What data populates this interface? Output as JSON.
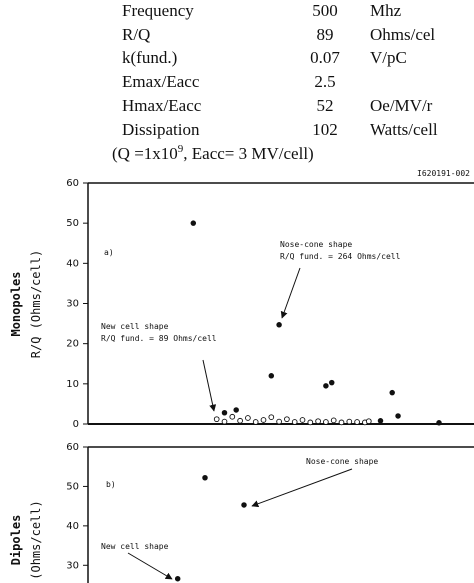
{
  "table": {
    "rows": [
      [
        "Frequency",
        500,
        "Mhz"
      ],
      [
        "R/Q",
        89,
        "Ohms/cel"
      ],
      [
        "k(fund.)",
        0.07,
        "V/pC"
      ],
      [
        "Emax/Eacc",
        2.5
      ],
      [
        "Hmax/Eacc",
        52,
        "Oe/MV/r"
      ],
      [
        "Dissipation",
        102,
        "Watts/cell"
      ]
    ]
  },
  "note": {
    "before": "(Q =1x10",
    "sup": "9",
    "after": ", Eacc= 3 MV/cell)"
  },
  "figure_id": "I620191-002",
  "chart_data": [
    {
      "type": "scatter",
      "panel": "a)",
      "y_label": "R/Q  (Ohms/cell)",
      "y_label_outer": "Monopoles",
      "xlim": [
        0,
        100
      ],
      "ylim": [
        0,
        60
      ],
      "yticks": [
        0,
        10,
        20,
        30,
        40,
        50,
        60
      ],
      "series": [
        {
          "marker": "filled",
          "color": "#111111",
          "x": [
            27,
            49,
            47,
            61,
            62.5,
            78,
            79.5,
            90,
            75,
            38,
            35
          ],
          "values": [
            50,
            24.7,
            12,
            9.5,
            10.3,
            7.8,
            2,
            0.3,
            0.8,
            3.5,
            2.8
          ]
        },
        {
          "marker": "open",
          "color": "#111111",
          "x": [
            33,
            35,
            37,
            39,
            41,
            43,
            45,
            47,
            49,
            51,
            53,
            55,
            57,
            59,
            61,
            63,
            65,
            67,
            69,
            71,
            72
          ],
          "values": [
            1.2,
            0.6,
            1.8,
            0.8,
            1.5,
            0.5,
            1.0,
            1.7,
            0.6,
            1.2,
            0.5,
            1.0,
            0.4,
            0.7,
            0.5,
            0.9,
            0.4,
            0.6,
            0.5,
            0.4,
            0.7
          ]
        }
      ],
      "annotations": [
        {
          "lines": [
            "Nose-cone shape",
            "R/Q  fund.  =  264   Ohms/cell"
          ]
        },
        {
          "lines": [
            "New cell shape",
            "R/Q  fund.  = 89  Ohms/cell"
          ]
        }
      ]
    },
    {
      "type": "scatter",
      "panel": "b)",
      "y_label": "(Ohms/cell)",
      "y_label_outer": "Dipoles",
      "xlim": [
        0,
        100
      ],
      "ylim": [
        25,
        60
      ],
      "yticks": [
        30,
        40,
        50,
        60
      ],
      "series": [
        {
          "marker": "filled",
          "color": "#111111",
          "x": [
            30,
            40,
            23
          ],
          "values": [
            52.2,
            45.3,
            26.6
          ]
        }
      ],
      "annotations": [
        {
          "lines": [
            "Nose-cone shape"
          ]
        },
        {
          "lines": [
            "New cell shape"
          ]
        }
      ]
    }
  ]
}
